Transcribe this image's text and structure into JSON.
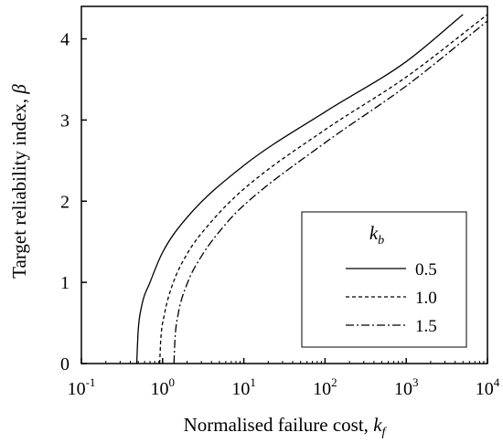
{
  "chart_data": {
    "type": "line",
    "xlabel": "Normalised failure cost, ",
    "xlabel_symbol": "k",
    "xlabel_sub": "f",
    "ylabel": "Target reliability index, ",
    "ylabel_symbol": "β",
    "xscale": "log",
    "xlim": [
      0.1,
      10000
    ],
    "ylim": [
      0,
      4.4
    ],
    "grid": false,
    "x_ticks": [
      {
        "base": "10",
        "exp": "-1"
      },
      {
        "base": "10",
        "exp": "0"
      },
      {
        "base": "10",
        "exp": "1"
      },
      {
        "base": "10",
        "exp": "2"
      },
      {
        "base": "10",
        "exp": "3"
      },
      {
        "base": "10",
        "exp": "4"
      }
    ],
    "y_ticks": [
      "0",
      "1",
      "2",
      "3",
      "4"
    ],
    "legend": {
      "placement": "bottom-right",
      "title_symbol": "k",
      "title_sub": "b"
    },
    "series": [
      {
        "name": "0.5",
        "dash": "solid",
        "points": [
          [
            0.48,
            0
          ],
          [
            0.5,
            0.4
          ],
          [
            0.55,
            0.7
          ],
          [
            0.7,
            1.0
          ],
          [
            1.0,
            1.37
          ],
          [
            2.0,
            1.8
          ],
          [
            10,
            2.44
          ],
          [
            100,
            3.1
          ],
          [
            1000,
            3.72
          ],
          [
            5000,
            4.3
          ]
        ]
      },
      {
        "name": "1.0",
        "dash": "dashed",
        "points": [
          [
            0.92,
            0
          ],
          [
            0.95,
            0.3
          ],
          [
            1.05,
            0.6
          ],
          [
            1.3,
            0.95
          ],
          [
            2.0,
            1.35
          ],
          [
            4.0,
            1.75
          ],
          [
            10,
            2.15
          ],
          [
            100,
            2.88
          ],
          [
            1000,
            3.53
          ],
          [
            10000,
            4.3
          ]
        ]
      },
      {
        "name": "1.5",
        "dash": "dashdot",
        "points": [
          [
            1.38,
            0
          ],
          [
            1.42,
            0.3
          ],
          [
            1.55,
            0.6
          ],
          [
            2.0,
            0.98
          ],
          [
            3.0,
            1.32
          ],
          [
            6.0,
            1.72
          ],
          [
            10,
            1.95
          ],
          [
            100,
            2.72
          ],
          [
            1000,
            3.42
          ],
          [
            10000,
            4.22
          ]
        ]
      }
    ]
  }
}
